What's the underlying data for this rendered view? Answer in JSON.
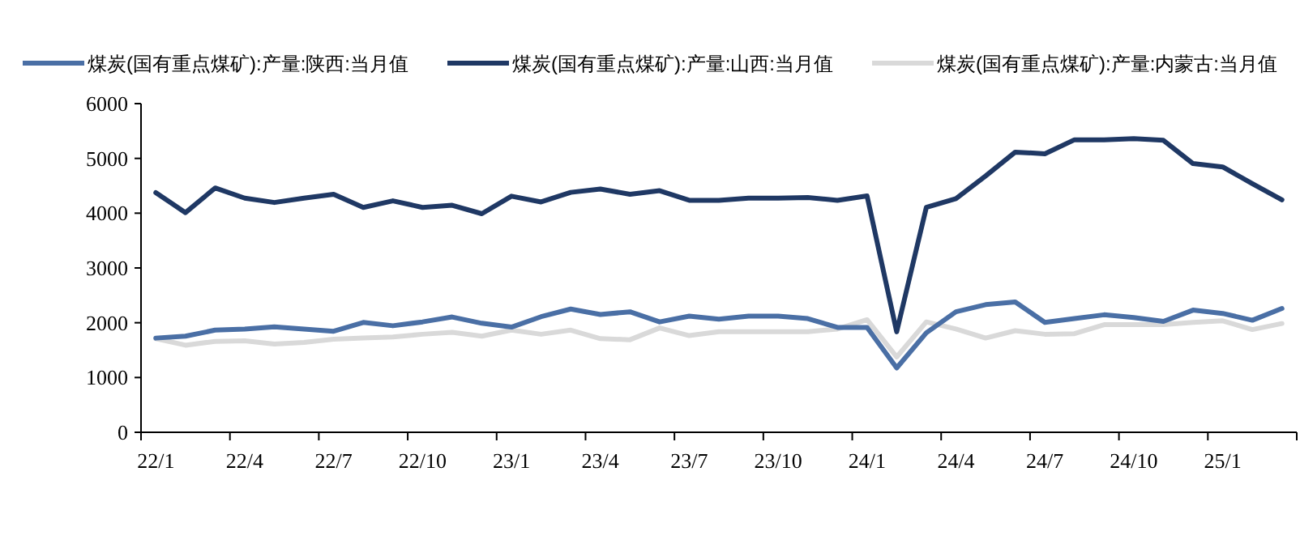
{
  "chart_data": {
    "type": "line",
    "categories": [
      "22/1",
      null,
      null,
      "22/4",
      null,
      null,
      "22/7",
      null,
      null,
      "22/10",
      null,
      null,
      "23/1",
      null,
      null,
      "23/4",
      null,
      null,
      "23/7",
      null,
      null,
      "23/10",
      null,
      null,
      "24/1",
      null,
      null,
      "24/4",
      null,
      null,
      "24/7",
      null,
      null,
      "24/10",
      null,
      null,
      "25/1",
      null,
      null
    ],
    "series": [
      {
        "name": "煤炭(国有重点煤矿):产量:陕西:当月值",
        "color": "#4a6fa5",
        "values": [
          1720,
          1755,
          1865,
          1885,
          1925,
          1885,
          1845,
          2005,
          1945,
          2015,
          2105,
          1990,
          1920,
          2110,
          2250,
          2150,
          2200,
          2015,
          2120,
          2065,
          2120,
          2120,
          2075,
          1915,
          1915,
          1175,
          1815,
          2200,
          2330,
          2380,
          2005,
          2075,
          2145,
          2095,
          2025,
          2230,
          2170,
          2045,
          2260
        ]
      },
      {
        "name": "煤炭(国有重点煤矿):产量:山西:当月值",
        "color": "#1f3864",
        "values": [
          4375,
          4010,
          4460,
          4275,
          4195,
          4275,
          4345,
          4105,
          4225,
          4105,
          4145,
          3990,
          4310,
          4205,
          4380,
          4440,
          4345,
          4410,
          4235,
          4235,
          4275,
          4275,
          4285,
          4235,
          4315,
          1835,
          4105,
          4265,
          4680,
          5115,
          5085,
          5340,
          5340,
          5360,
          5330,
          4905,
          4845,
          4540,
          4245
        ]
      },
      {
        "name": "煤炭(国有重点煤矿):产量:内蒙古:当月值",
        "color": "#d9d9d9",
        "values": [
          1710,
          1590,
          1660,
          1670,
          1610,
          1640,
          1700,
          1720,
          1740,
          1790,
          1825,
          1755,
          1865,
          1790,
          1865,
          1710,
          1690,
          1905,
          1765,
          1835,
          1835,
          1835,
          1835,
          1885,
          2055,
          1375,
          2015,
          1885,
          1720,
          1855,
          1790,
          1800,
          1965,
          1965,
          1965,
          2005,
          2035,
          1875,
          1985
        ]
      }
    ],
    "ylim": [
      0,
      6000
    ],
    "yticks": [
      0,
      1000,
      2000,
      3000,
      4000,
      5000,
      6000
    ],
    "legend": "top",
    "grid": false
  }
}
